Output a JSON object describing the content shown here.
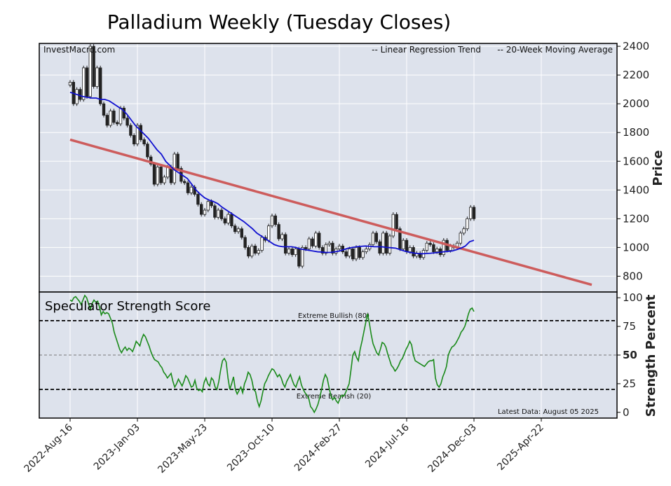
{
  "title": "Palladium Weekly (Tuesday Closes)",
  "watermark": "InvestMacro.com",
  "colors": {
    "panel_bg": "#dde2ec",
    "regression": "#cd5c5c",
    "moving_avg": "#1010d0",
    "strength_line": "#1a8a1a",
    "legend_regression": "#b22222",
    "legend_ma": "#1010c0"
  },
  "chart_data": [
    {
      "type": "candlestick",
      "ylabel": "Price",
      "ylim": [
        690,
        2420
      ],
      "yticks": [
        800,
        1000,
        1200,
        1400,
        1600,
        1800,
        2000,
        2200,
        2400
      ],
      "x_tick_labels": [
        "2022-Aug-16",
        "2023-Jan-03",
        "2023-May-23",
        "2023-Oct-10",
        "2024-Feb-27",
        "2024-Jul-16",
        "2024-Dec-03",
        "2025-Apr-22"
      ],
      "x_tick_weeks": [
        0,
        20,
        40,
        60,
        80,
        100,
        120,
        140
      ],
      "legend": {
        "regression_label": "-- Linear Regression Trend",
        "ma_label": "-- 20-Week Moving Average",
        "placement": "top-right"
      },
      "regression": {
        "start_week": 0,
        "start_value": 1750,
        "end_week": 155,
        "end_value": 740
      },
      "closes": [
        2150,
        2000,
        2100,
        2030,
        2250,
        2050,
        2400,
        2120,
        2250,
        2000,
        1920,
        1850,
        1950,
        1870,
        1860,
        1970,
        1900,
        1850,
        1780,
        1720,
        1850,
        1750,
        1720,
        1630,
        1580,
        1440,
        1560,
        1450,
        1490,
        1560,
        1450,
        1650,
        1550,
        1460,
        1450,
        1380,
        1420,
        1370,
        1300,
        1230,
        1260,
        1320,
        1290,
        1210,
        1260,
        1200,
        1170,
        1230,
        1150,
        1110,
        1130,
        1070,
        1000,
        940,
        1010,
        960,
        980,
        1070,
        1050,
        1150,
        1220,
        1160,
        1060,
        1090,
        960,
        990,
        950,
        990,
        870,
        1000,
        990,
        1060,
        1010,
        1100,
        1000,
        960,
        1020,
        1030,
        960,
        990,
        1010,
        970,
        940,
        990,
        920,
        1000,
        930,
        970,
        990,
        1020,
        1100,
        1040,
        960,
        1100,
        960,
        1080,
        1230,
        1130,
        990,
        1050,
        970,
        1000,
        940,
        960,
        930,
        980,
        1030,
        1020,
        970,
        990,
        950,
        1050,
        980,
        1010,
        1000,
        1030,
        1100,
        1130,
        1200,
        1280,
        1200
      ],
      "ma20": [
        2080,
        2070,
        2060,
        2050,
        2045,
        2040,
        2040,
        2030,
        2030,
        2020,
        2000,
        1980,
        1960,
        1930,
        1890,
        1850,
        1820,
        1790,
        1760,
        1720,
        1680,
        1650,
        1600,
        1570,
        1540,
        1520,
        1500,
        1480,
        1440,
        1400,
        1370,
        1345,
        1330,
        1320,
        1305,
        1280,
        1260,
        1240,
        1220,
        1200,
        1180,
        1155,
        1130,
        1100,
        1080,
        1060,
        1040,
        1020,
        1010,
        1005,
        1005,
        1005,
        1000,
        990,
        985,
        980,
        975,
        970,
        968,
        965,
        966,
        970,
        975,
        985,
        995,
        1000,
        1005,
        1008,
        1010,
        1008,
        1005,
        1005,
        1004,
        1000,
        998,
        995,
        985,
        975,
        968,
        962,
        958,
        956,
        958,
        960,
        963,
        966,
        970,
        973,
        976,
        985,
        995,
        1010,
        1040,
        1050
      ],
      "ma_start_week": 0,
      "ma_step": 0.6
    },
    {
      "type": "line",
      "title": "Speculator Strength Score",
      "ylabel": "Strength Percent",
      "ylim": [
        -5,
        105
      ],
      "yticks": [
        0,
        25,
        50,
        75,
        100
      ],
      "bold_tick": 50,
      "thresholds": [
        {
          "value": 80,
          "label": "Extreme Bullish (80)"
        },
        {
          "value": 50,
          "label": ""
        },
        {
          "value": 20,
          "label": "Extreme Bearish (20)"
        }
      ],
      "latest_note": "Latest Data: August 05 2025",
      "values": [
        98,
        97,
        100,
        101,
        99,
        97,
        94,
        98,
        102,
        100,
        95,
        90,
        95,
        98,
        96,
        97,
        92,
        85,
        88,
        86,
        87,
        86,
        82,
        78,
        70,
        65,
        60,
        55,
        52,
        55,
        57,
        54,
        56,
        55,
        53,
        57,
        62,
        60,
        58,
        64,
        68,
        66,
        62,
        58,
        53,
        49,
        46,
        45,
        44,
        41,
        39,
        35,
        33,
        30,
        32,
        34,
        27,
        22,
        25,
        29,
        26,
        23,
        27,
        32,
        30,
        26,
        22,
        23,
        28,
        21,
        19,
        20,
        18,
        26,
        30,
        25,
        23,
        30,
        28,
        22,
        20,
        27,
        37,
        45,
        47,
        44,
        30,
        20,
        25,
        31,
        20,
        16,
        19,
        22,
        17,
        25,
        29,
        35,
        33,
        28,
        20,
        18,
        10,
        5,
        10,
        18,
        25,
        28,
        32,
        35,
        38,
        37,
        34,
        31,
        33,
        30,
        25,
        22,
        27,
        30,
        33,
        28,
        24,
        22,
        27,
        31,
        24,
        20,
        17,
        15,
        12,
        5,
        3,
        0,
        3,
        7,
        13,
        20,
        28,
        33,
        30,
        22,
        15,
        11,
        13,
        10,
        8,
        12,
        15,
        14,
        17,
        21,
        25,
        37,
        50,
        53,
        48,
        45,
        55,
        62,
        70,
        78,
        86,
        78,
        68,
        60,
        56,
        52,
        50,
        55,
        61,
        60,
        57,
        51,
        46,
        41,
        39,
        36,
        38,
        41,
        45,
        47,
        51,
        55,
        58,
        62,
        59,
        50,
        45,
        44,
        43,
        42,
        41,
        40,
        42,
        44,
        45,
        45,
        46,
        30,
        24,
        22,
        25,
        31,
        35,
        40,
        50,
        54,
        57,
        58,
        60,
        63,
        66,
        70,
        72,
        75,
        80,
        86,
        90,
        91,
        88
      ]
    }
  ]
}
